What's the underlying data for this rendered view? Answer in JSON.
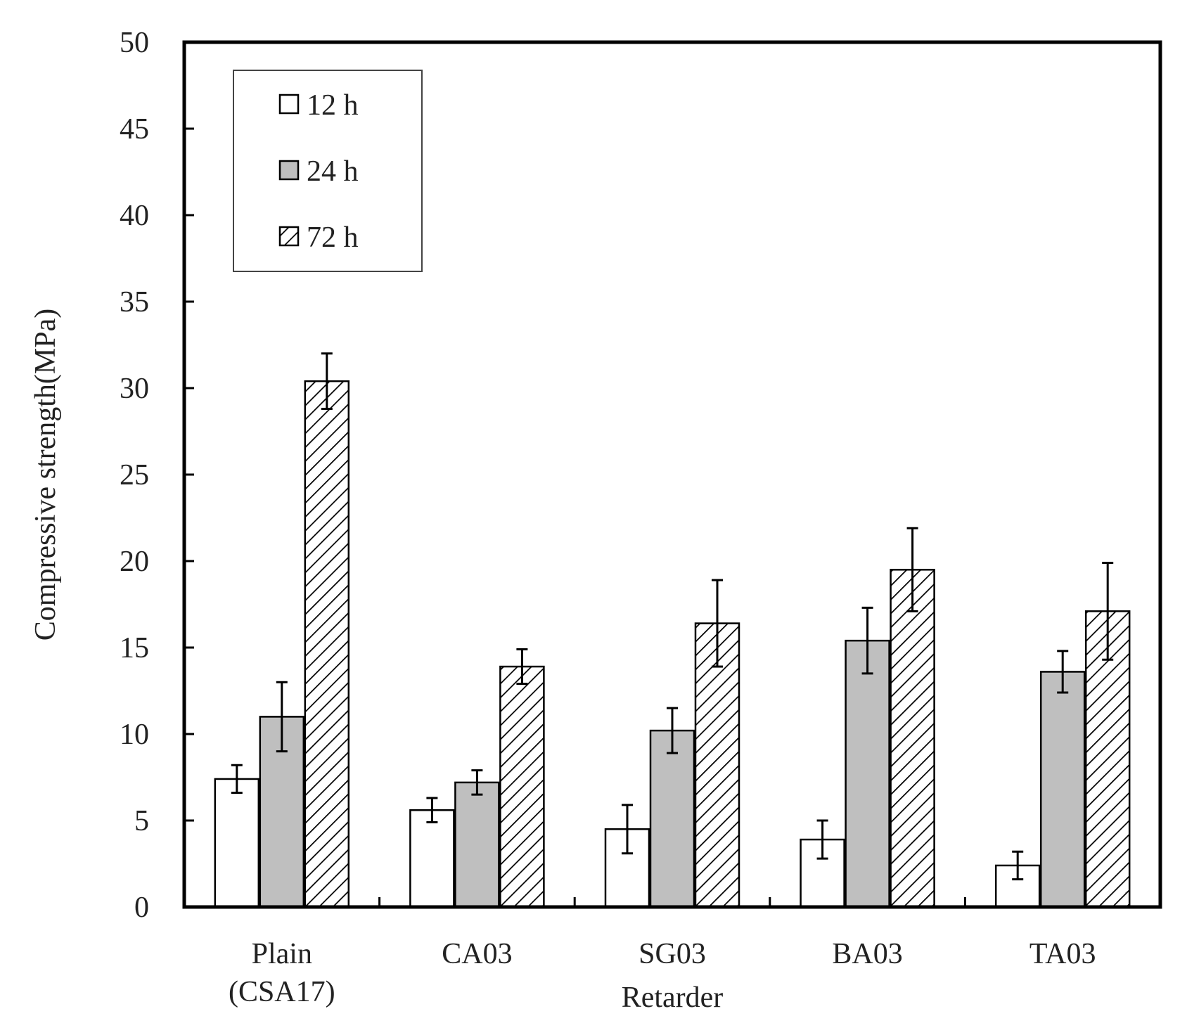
{
  "chart_data": {
    "type": "bar",
    "title": "",
    "xlabel": "Retarder",
    "ylabel": "Compressive strength(MPa)",
    "ylim": [
      0,
      50
    ],
    "yticks": [
      0,
      5,
      10,
      15,
      20,
      25,
      30,
      35,
      40,
      45,
      50
    ],
    "grid": false,
    "legend_position": "top-left",
    "categories": [
      [
        "Plain",
        "(CSA17)"
      ],
      [
        "CA03"
      ],
      [
        "SG03"
      ],
      [
        "BA03"
      ],
      [
        "TA03"
      ]
    ],
    "series": [
      {
        "name": "12 h",
        "style": "white",
        "values": [
          7.4,
          5.6,
          4.5,
          3.9,
          2.4
        ],
        "errors": [
          0.8,
          0.7,
          1.4,
          1.1,
          0.8
        ]
      },
      {
        "name": "24 h",
        "style": "gray",
        "values": [
          11.0,
          7.2,
          10.2,
          15.4,
          13.6
        ],
        "errors": [
          2.0,
          0.7,
          1.3,
          1.9,
          1.2
        ]
      },
      {
        "name": "72 h",
        "style": "hatched",
        "values": [
          30.4,
          13.9,
          16.4,
          19.5,
          17.1
        ],
        "errors": [
          1.6,
          1.0,
          2.5,
          2.4,
          2.8
        ]
      }
    ],
    "colors": {
      "white": "#ffffff",
      "gray": "#bfbfbf",
      "hatch": "#000000",
      "outline": "#000000"
    }
  }
}
